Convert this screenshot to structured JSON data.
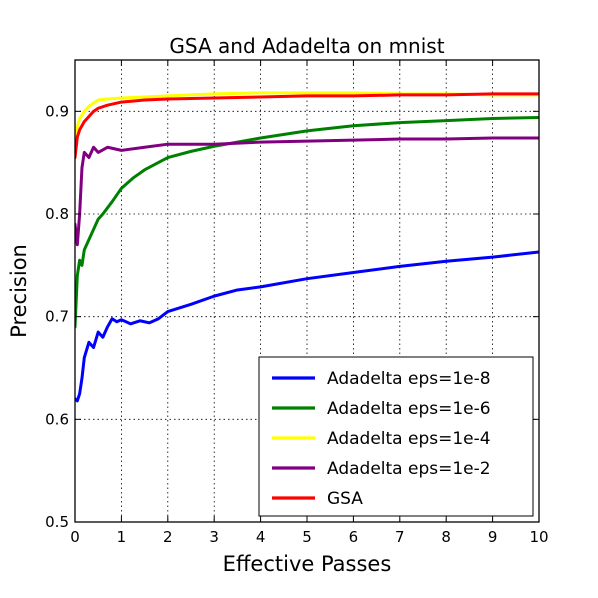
{
  "chart_data": {
    "type": "line",
    "title": "GSA and Adadelta on mnist",
    "xlabel": "Effective Passes",
    "ylabel": "Precision",
    "xlim": [
      0,
      10
    ],
    "ylim": [
      0.5,
      0.95
    ],
    "xticks": [
      "0",
      "1",
      "2",
      "3",
      "4",
      "5",
      "6",
      "7",
      "8",
      "9",
      "10"
    ],
    "yticks": [
      "0.5",
      "0.6",
      "0.7",
      "0.8",
      "0.9"
    ],
    "grid": true,
    "legend_position": "lower-right",
    "series": [
      {
        "name": "Adadelta eps=1e-8",
        "color": "#0000ff",
        "x": [
          0,
          0.05,
          0.1,
          0.15,
          0.2,
          0.3,
          0.4,
          0.5,
          0.6,
          0.7,
          0.8,
          0.9,
          1.0,
          1.2,
          1.4,
          1.6,
          1.8,
          2.0,
          2.5,
          3.0,
          3.5,
          4.0,
          5.0,
          6.0,
          7.0,
          8.0,
          9.0,
          10.0
        ],
        "y": [
          0.62,
          0.618,
          0.625,
          0.64,
          0.66,
          0.675,
          0.67,
          0.685,
          0.68,
          0.69,
          0.698,
          0.695,
          0.697,
          0.693,
          0.696,
          0.694,
          0.698,
          0.705,
          0.712,
          0.72,
          0.726,
          0.729,
          0.737,
          0.743,
          0.749,
          0.754,
          0.758,
          0.763
        ]
      },
      {
        "name": "Adadelta eps=1e-6",
        "color": "#008000",
        "x": [
          0,
          0.05,
          0.1,
          0.15,
          0.2,
          0.3,
          0.4,
          0.5,
          0.6,
          0.8,
          1.0,
          1.25,
          1.5,
          2.0,
          2.5,
          3.0,
          3.5,
          4.0,
          5.0,
          6.0,
          7.0,
          8.0,
          9.0,
          10.0
        ],
        "y": [
          0.69,
          0.74,
          0.755,
          0.75,
          0.765,
          0.775,
          0.785,
          0.795,
          0.8,
          0.812,
          0.825,
          0.835,
          0.843,
          0.855,
          0.861,
          0.866,
          0.87,
          0.874,
          0.881,
          0.886,
          0.889,
          0.891,
          0.893,
          0.894
        ]
      },
      {
        "name": "Adadelta eps=1e-4",
        "color": "#ffff00",
        "x": [
          0,
          0.05,
          0.1,
          0.2,
          0.3,
          0.4,
          0.5,
          0.7,
          1.0,
          1.5,
          2.0,
          3.0,
          4.0,
          5.0,
          6.0,
          7.0,
          8.0,
          9.0,
          10.0
        ],
        "y": [
          0.86,
          0.885,
          0.893,
          0.9,
          0.905,
          0.908,
          0.911,
          0.912,
          0.913,
          0.914,
          0.915,
          0.917,
          0.918,
          0.918,
          0.918,
          0.917,
          0.917,
          0.916,
          0.916
        ]
      },
      {
        "name": "Adadelta eps=1e-2",
        "color": "#800080",
        "x": [
          0,
          0.05,
          0.1,
          0.15,
          0.2,
          0.3,
          0.4,
          0.5,
          0.7,
          1.0,
          1.5,
          2.0,
          3.0,
          4.0,
          5.0,
          6.0,
          7.0,
          8.0,
          9.0,
          10.0
        ],
        "y": [
          0.79,
          0.77,
          0.8,
          0.845,
          0.86,
          0.855,
          0.865,
          0.86,
          0.865,
          0.862,
          0.865,
          0.868,
          0.868,
          0.87,
          0.871,
          0.872,
          0.873,
          0.873,
          0.874,
          0.874
        ]
      },
      {
        "name": "GSA",
        "color": "#ff0000",
        "x": [
          0,
          0.05,
          0.1,
          0.2,
          0.3,
          0.4,
          0.5,
          0.7,
          1.0,
          1.5,
          2.0,
          3.0,
          4.0,
          5.0,
          6.0,
          7.0,
          8.0,
          9.0,
          10.0
        ],
        "y": [
          0.855,
          0.875,
          0.882,
          0.89,
          0.895,
          0.9,
          0.903,
          0.906,
          0.909,
          0.911,
          0.912,
          0.913,
          0.914,
          0.915,
          0.915,
          0.916,
          0.916,
          0.917,
          0.917
        ]
      }
    ]
  }
}
